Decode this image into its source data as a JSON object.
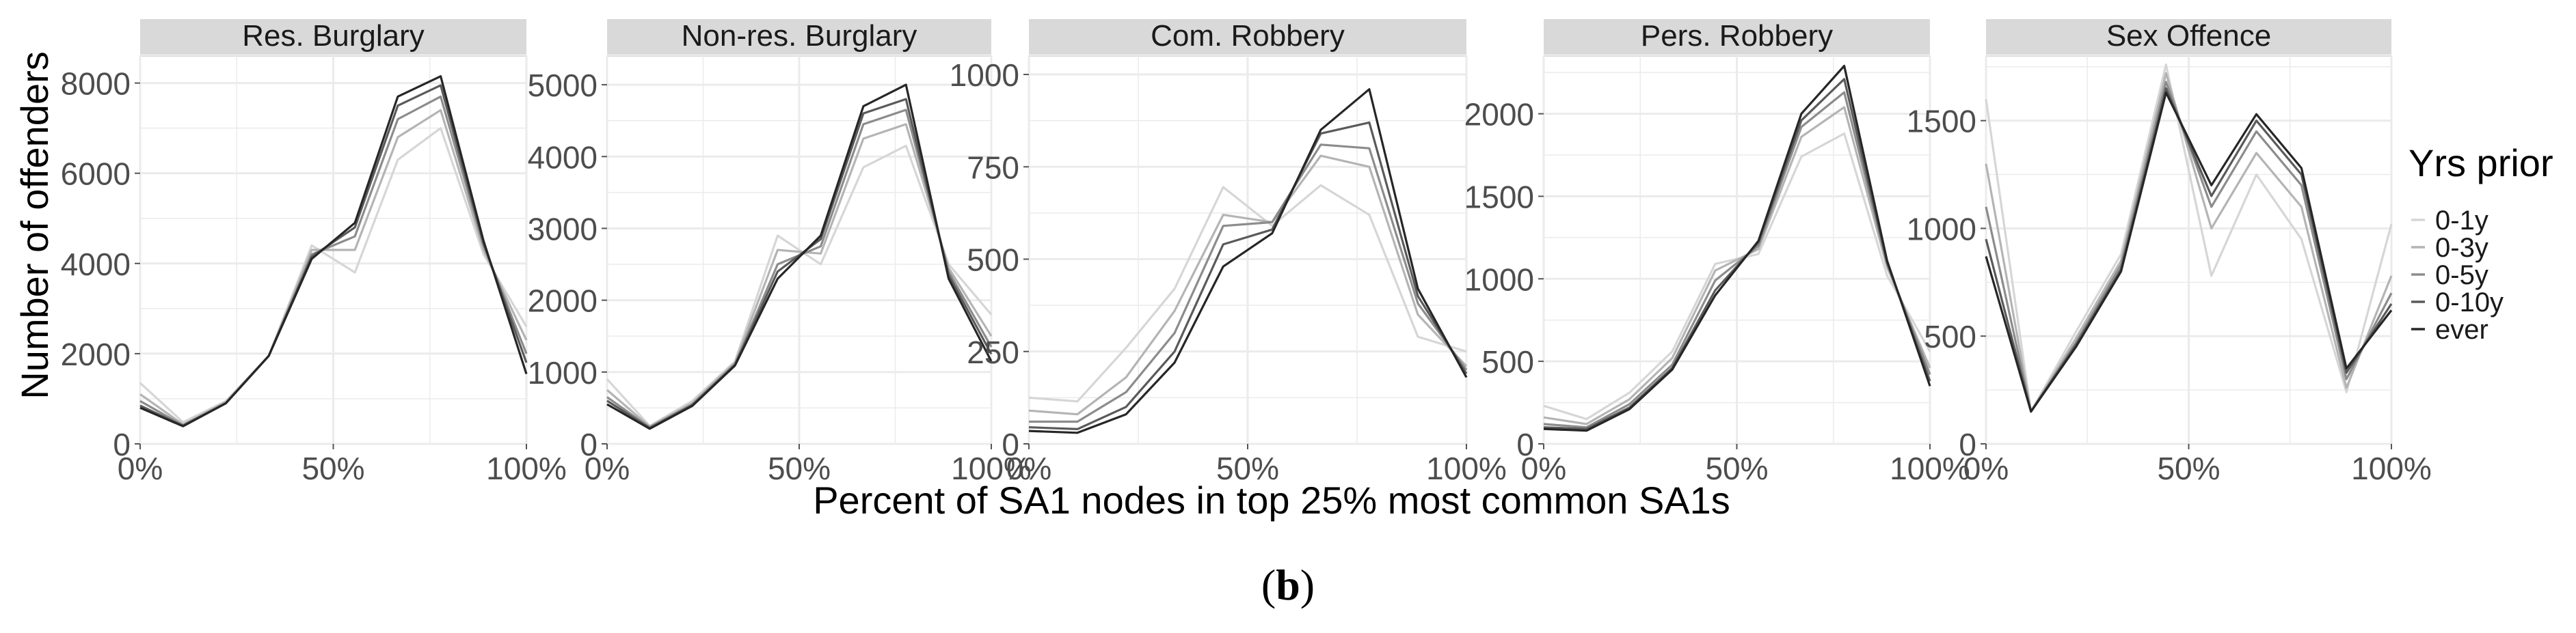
{
  "figure": {
    "caption_open": "(",
    "caption_letter": "b",
    "caption_close": ")",
    "ylabel": "Number of offenders",
    "xlabel": "Percent of SA1 nodes in top 25% most common SA1s",
    "legend_title": "Yrs prior",
    "panel_bg": "#ffffff",
    "strip_bg": "#d9d9d9",
    "grid_color": "#ebebeb"
  },
  "chart_data": {
    "type": "line",
    "facets": true,
    "x": [
      0,
      11.1,
      22.2,
      33.3,
      44.4,
      55.6,
      66.7,
      77.8,
      88.9,
      100
    ],
    "x_tick_values": [
      0,
      50,
      100
    ],
    "x_tick_labels": [
      "0%",
      "50%",
      "100%"
    ],
    "xlim": [
      0,
      100
    ],
    "series_names": [
      "0-1y",
      "0-3y",
      "0-5y",
      "0-10y",
      "ever"
    ],
    "series_colors": [
      "#d6d6d6",
      "#b4b4b4",
      "#8c8c8c",
      "#5a5a5a",
      "#262626"
    ],
    "grid": true,
    "legend_placement": "right",
    "panels": [
      {
        "title": "Res. Burglary",
        "ylim": [
          0,
          8600
        ],
        "y_ticks": [
          0,
          2000,
          4000,
          6000,
          8000
        ],
        "series": [
          {
            "name": "0-1y",
            "values": [
              1350,
              480,
              950,
              1950,
              4400,
              3800,
              6300,
              7000,
              4200,
              2600
            ]
          },
          {
            "name": "0-3y",
            "values": [
              1100,
              430,
              930,
              1950,
              4300,
              4300,
              6800,
              7400,
              4300,
              2300
            ]
          },
          {
            "name": "0-5y",
            "values": [
              950,
              410,
              910,
              1950,
              4200,
              4600,
              7200,
              7700,
              4400,
              2000
            ]
          },
          {
            "name": "0-10y",
            "values": [
              850,
              400,
              900,
              1950,
              4150,
              4800,
              7500,
              7950,
              4450,
              1800
            ]
          },
          {
            "name": "ever",
            "values": [
              800,
              390,
              900,
              1950,
              4100,
              4900,
              7700,
              8150,
              4500,
              1550
            ]
          }
        ]
      },
      {
        "title": "Non-res. Burglary",
        "ylim": [
          0,
          5400
        ],
        "y_ticks": [
          0,
          1000,
          2000,
          3000,
          4000,
          5000
        ],
        "series": [
          {
            "name": "0-1y",
            "values": [
              900,
              250,
              600,
              1150,
              2900,
              2500,
              3850,
              4150,
              2500,
              1800
            ]
          },
          {
            "name": "0-3y",
            "values": [
              750,
              240,
              570,
              1130,
              2700,
              2650,
              4250,
              4450,
              2450,
              1500
            ]
          },
          {
            "name": "0-5y",
            "values": [
              650,
              230,
              550,
              1110,
              2500,
              2750,
              4450,
              4650,
              2400,
              1350
            ]
          },
          {
            "name": "0-10y",
            "values": [
              600,
              220,
              540,
              1100,
              2400,
              2850,
              4600,
              4800,
              2350,
              1250
            ]
          },
          {
            "name": "ever",
            "values": [
              550,
              210,
              530,
              1090,
              2300,
              2900,
              4700,
              5000,
              2300,
              1150
            ]
          }
        ]
      },
      {
        "title": "Com. Robbery",
        "ylim": [
          0,
          1050
        ],
        "y_ticks": [
          0,
          250,
          500,
          750,
          1000
        ],
        "y_tick_labels": [
          "0",
          "250",
          "500",
          "750",
          "1000"
        ],
        "series": [
          {
            "name": "0-1y",
            "values": [
              125,
              115,
              260,
              420,
              695,
              590,
              700,
              620,
              290,
              250
            ]
          },
          {
            "name": "0-3y",
            "values": [
              90,
              80,
              180,
              360,
              620,
              600,
              780,
              750,
              350,
              210
            ]
          },
          {
            "name": "0-5y",
            "values": [
              60,
              60,
              140,
              300,
              590,
              600,
              810,
              800,
              380,
              200
            ]
          },
          {
            "name": "0-10y",
            "values": [
              45,
              40,
              100,
              250,
              540,
              580,
              840,
              870,
              400,
              190
            ]
          },
          {
            "name": "ever",
            "values": [
              35,
              30,
              80,
              220,
              480,
              570,
              850,
              960,
              420,
              180
            ]
          }
        ]
      },
      {
        "title": "Pers. Robbery",
        "ylim": [
          0,
          2350
        ],
        "y_ticks": [
          0,
          500,
          1000,
          1500,
          2000
        ],
        "series": [
          {
            "name": "0-1y",
            "values": [
              230,
              150,
              310,
              560,
              1090,
              1150,
              1740,
              1880,
              1020,
              560
            ]
          },
          {
            "name": "0-3y",
            "values": [
              160,
              120,
              270,
              520,
              1050,
              1180,
              1860,
              2040,
              1070,
              460
            ]
          },
          {
            "name": "0-5y",
            "values": [
              120,
              100,
              240,
              480,
              990,
              1200,
              1920,
              2130,
              1090,
              420
            ]
          },
          {
            "name": "0-10y",
            "values": [
              100,
              90,
              220,
              460,
              930,
              1220,
              1960,
              2210,
              1100,
              380
            ]
          },
          {
            "name": "ever",
            "values": [
              90,
              80,
              210,
              450,
              900,
              1230,
              2000,
              2290,
              1110,
              350
            ]
          }
        ]
      },
      {
        "title": "Sex Offence",
        "ylim": [
          0,
          1800
        ],
        "y_ticks": [
          0,
          500,
          1000,
          1500
        ],
        "series": [
          {
            "name": "0-1y",
            "values": [
              1600,
              150,
              520,
              880,
              1760,
              780,
              1250,
              950,
              240,
              1020
            ]
          },
          {
            "name": "0-3y",
            "values": [
              1300,
              150,
              490,
              850,
              1720,
              1000,
              1350,
              1100,
              260,
              780
            ]
          },
          {
            "name": "0-5y",
            "values": [
              1100,
              150,
              470,
              830,
              1680,
              1100,
              1450,
              1200,
              300,
              700
            ]
          },
          {
            "name": "0-10y",
            "values": [
              950,
              150,
              460,
              810,
              1650,
              1150,
              1500,
              1250,
              330,
              650
            ]
          },
          {
            "name": "ever",
            "values": [
              870,
              150,
              450,
              800,
              1630,
              1200,
              1530,
              1280,
              350,
              620
            ]
          }
        ]
      }
    ]
  }
}
